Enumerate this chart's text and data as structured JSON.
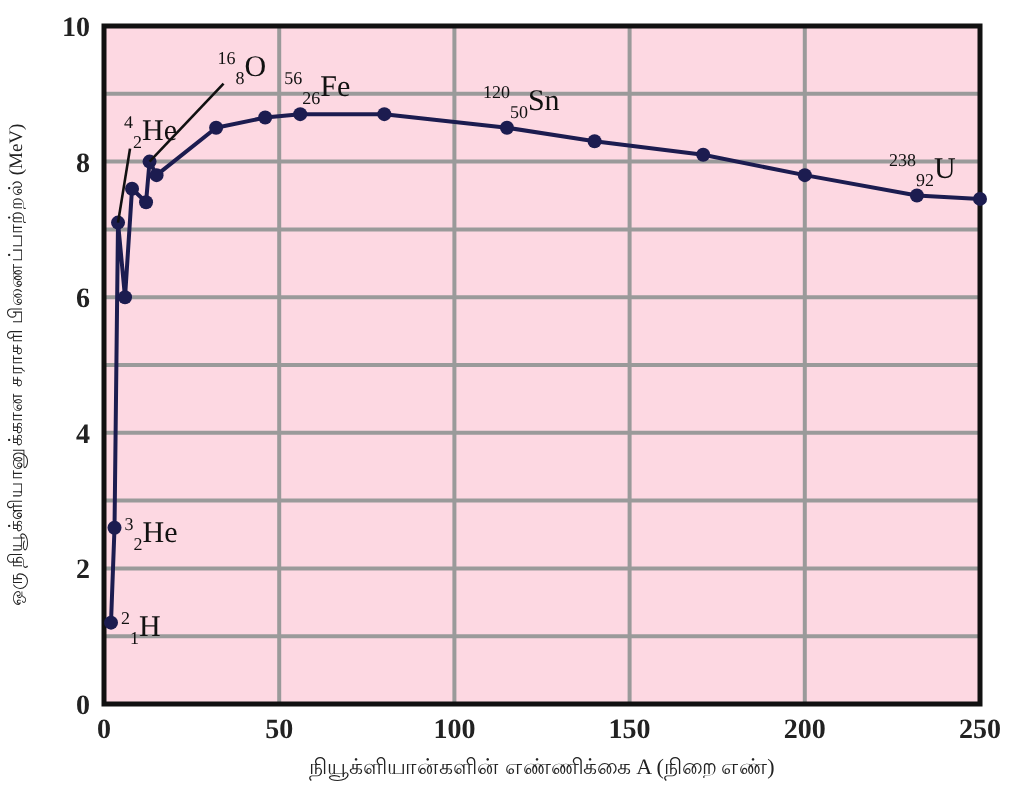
{
  "chart_data": {
    "type": "line",
    "xlabel": "நியூக்ளியான்களின் எண்ணிக்கை A (நிறை எண்)",
    "ylabel": "ஒரு நியூக்ளியானுக்கான சராசரி பிணைப்பாற்றல் (MeV)",
    "x": [
      2,
      3,
      4,
      6,
      8,
      12,
      13,
      15,
      32,
      46,
      56,
      80,
      115,
      140,
      171,
      200,
      232,
      250
    ],
    "series": [
      {
        "color": "#1c1c50",
        "values": [
          1.2,
          2.6,
          7.1,
          6.0,
          7.6,
          7.4,
          8.0,
          7.8,
          8.5,
          8.65,
          8.7,
          8.7,
          8.5,
          8.3,
          8.1,
          7.8,
          7.5,
          7.45
        ]
      }
    ],
    "marker": "circle",
    "grid": true,
    "xlim": [
      0,
      250
    ],
    "ylim": [
      0,
      10
    ],
    "xticks": [
      0,
      50,
      100,
      150,
      200,
      250
    ],
    "yticks": [
      0,
      {
        "value": 1,
        "label": null
      },
      2,
      {
        "value": 3,
        "label": null
      },
      4,
      {
        "value": 5,
        "label": null
      },
      6,
      {
        "value": 7,
        "label": null
      },
      8,
      {
        "value": 9,
        "label": null
      },
      10
    ],
    "annotations": [
      {
        "text": "$^{2}$$_{1}$H",
        "x": 2,
        "y": 1.2
      },
      {
        "text": "$^{3}$$_{2}$He",
        "x": 3,
        "y": 2.6
      },
      {
        "text": "$^{4}$$_{2}$He",
        "x": 4,
        "y": 7.1
      },
      {
        "text": "$^{16}$$_{8}$O",
        "x": 13,
        "y": 8.0
      },
      {
        "text": "$^{56}$$_{26}$Fe",
        "x": 56,
        "y": 8.7
      },
      {
        "text": "$^{120}$$_{50}$Sn",
        "x": 115,
        "y": 8.5
      },
      {
        "text": "$^{238}$$_{92}$U",
        "x": 232,
        "y": 7.5
      }
    ]
  }
}
